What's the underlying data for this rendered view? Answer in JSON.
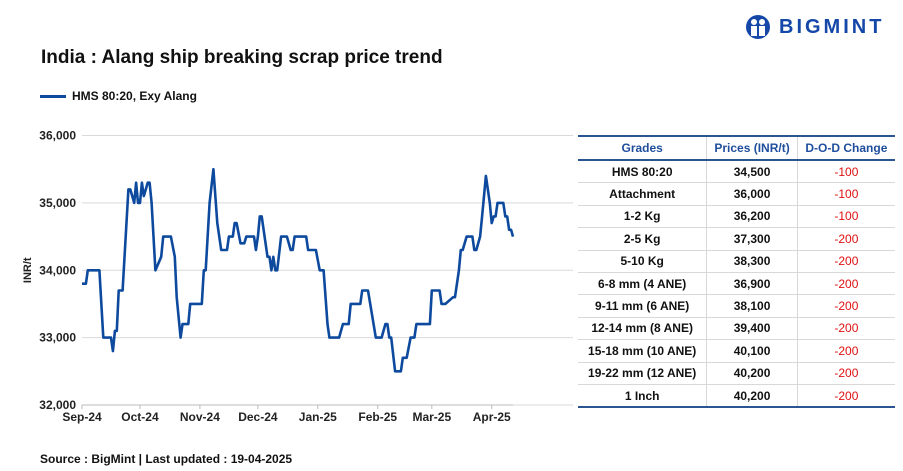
{
  "brand": {
    "name": "BIGMINT",
    "color": "#1447a8"
  },
  "title": "India : Alang ship breaking scrap price trend",
  "source": "Source : BigMint | Last updated : 19-04-2025",
  "chart_data": {
    "type": "line",
    "title": "India : Alang ship breaking scrap price trend",
    "ylabel": "INR/t",
    "ylim": [
      32000,
      36000
    ],
    "yticks": [
      "32,000",
      "33,000",
      "34,000",
      "35,000",
      "36,000"
    ],
    "xlim": [
      "2024-09-01",
      "2025-04-12"
    ],
    "xticks": [
      {
        "date": "2024-09-01",
        "label": "Sep-24"
      },
      {
        "date": "2024-10-01",
        "label": "Oct-24"
      },
      {
        "date": "2024-11-01",
        "label": "Nov-24"
      },
      {
        "date": "2024-12-01",
        "label": "Dec-24"
      },
      {
        "date": "2025-01-01",
        "label": "Jan-25"
      },
      {
        "date": "2025-02-01",
        "label": "Feb-25"
      },
      {
        "date": "2025-03-01",
        "label": "Mar-25"
      },
      {
        "date": "2025-04-01",
        "label": "Apr-25"
      }
    ],
    "grid": true,
    "legend": "top-left",
    "series": [
      {
        "name": "HMS 80:20, Exy Alang",
        "color": "#0d4a9e",
        "points": [
          [
            "2024-09-01",
            33800
          ],
          [
            "2024-09-03",
            33800
          ],
          [
            "2024-09-04",
            34000
          ],
          [
            "2024-09-10",
            34000
          ],
          [
            "2024-09-12",
            33000
          ],
          [
            "2024-09-16",
            33000
          ],
          [
            "2024-09-17",
            32800
          ],
          [
            "2024-09-18",
            33100
          ],
          [
            "2024-09-19",
            33100
          ],
          [
            "2024-09-20",
            33700
          ],
          [
            "2024-09-22",
            33700
          ],
          [
            "2024-09-25",
            35200
          ],
          [
            "2024-09-26",
            35200
          ],
          [
            "2024-09-28",
            35000
          ],
          [
            "2024-09-29",
            35300
          ],
          [
            "2024-09-30",
            35000
          ],
          [
            "2024-10-01",
            35000
          ],
          [
            "2024-10-02",
            35300
          ],
          [
            "2024-10-03",
            35100
          ],
          [
            "2024-10-04",
            35200
          ],
          [
            "2024-10-05",
            35300
          ],
          [
            "2024-10-06",
            35300
          ],
          [
            "2024-10-07",
            35000
          ],
          [
            "2024-10-09",
            34000
          ],
          [
            "2024-10-12",
            34200
          ],
          [
            "2024-10-13",
            34500
          ],
          [
            "2024-10-17",
            34500
          ],
          [
            "2024-10-19",
            34200
          ],
          [
            "2024-10-20",
            33600
          ],
          [
            "2024-10-22",
            33000
          ],
          [
            "2024-10-23",
            33200
          ],
          [
            "2024-10-26",
            33200
          ],
          [
            "2024-10-27",
            33500
          ],
          [
            "2024-11-02",
            33500
          ],
          [
            "2024-11-03",
            34000
          ],
          [
            "2024-11-04",
            34000
          ],
          [
            "2024-11-06",
            35000
          ],
          [
            "2024-11-08",
            35500
          ],
          [
            "2024-11-10",
            34700
          ],
          [
            "2024-11-12",
            34300
          ],
          [
            "2024-11-15",
            34300
          ],
          [
            "2024-11-16",
            34500
          ],
          [
            "2024-11-18",
            34500
          ],
          [
            "2024-11-19",
            34700
          ],
          [
            "2024-11-20",
            34700
          ],
          [
            "2024-11-22",
            34400
          ],
          [
            "2024-11-24",
            34400
          ],
          [
            "2024-11-25",
            34500
          ],
          [
            "2024-11-29",
            34500
          ],
          [
            "2024-11-30",
            34300
          ],
          [
            "2024-12-01",
            34500
          ],
          [
            "2024-12-02",
            34800
          ],
          [
            "2024-12-03",
            34800
          ],
          [
            "2024-12-06",
            34200
          ],
          [
            "2024-12-07",
            34200
          ],
          [
            "2024-12-08",
            34000
          ],
          [
            "2024-12-09",
            34200
          ],
          [
            "2024-12-10",
            34000
          ],
          [
            "2024-12-11",
            34000
          ],
          [
            "2024-12-13",
            34500
          ],
          [
            "2024-12-16",
            34500
          ],
          [
            "2024-12-18",
            34300
          ],
          [
            "2024-12-19",
            34300
          ],
          [
            "2024-12-20",
            34500
          ],
          [
            "2024-12-26",
            34500
          ],
          [
            "2024-12-27",
            34300
          ],
          [
            "2024-12-31",
            34300
          ],
          [
            "2025-01-02",
            34000
          ],
          [
            "2025-01-04",
            34000
          ],
          [
            "2025-01-06",
            33200
          ],
          [
            "2025-01-07",
            33000
          ],
          [
            "2025-01-12",
            33000
          ],
          [
            "2025-01-14",
            33200
          ],
          [
            "2025-01-17",
            33200
          ],
          [
            "2025-01-18",
            33500
          ],
          [
            "2025-01-23",
            33500
          ],
          [
            "2025-01-24",
            33700
          ],
          [
            "2025-01-27",
            33700
          ],
          [
            "2025-01-31",
            33000
          ],
          [
            "2025-02-03",
            33000
          ],
          [
            "2025-02-05",
            33200
          ],
          [
            "2025-02-06",
            33200
          ],
          [
            "2025-02-07",
            33000
          ],
          [
            "2025-02-08",
            33000
          ],
          [
            "2025-02-10",
            32500
          ],
          [
            "2025-02-13",
            32500
          ],
          [
            "2025-02-14",
            32700
          ],
          [
            "2025-02-16",
            32700
          ],
          [
            "2025-02-18",
            33000
          ],
          [
            "2025-02-20",
            33000
          ],
          [
            "2025-02-21",
            33200
          ],
          [
            "2025-02-28",
            33200
          ],
          [
            "2025-03-01",
            33700
          ],
          [
            "2025-03-05",
            33700
          ],
          [
            "2025-03-06",
            33500
          ],
          [
            "2025-03-08",
            33500
          ],
          [
            "2025-03-12",
            33600
          ],
          [
            "2025-03-13",
            33600
          ],
          [
            "2025-03-15",
            34000
          ],
          [
            "2025-03-16",
            34300
          ],
          [
            "2025-03-17",
            34300
          ],
          [
            "2025-03-19",
            34500
          ],
          [
            "2025-03-22",
            34500
          ],
          [
            "2025-03-23",
            34300
          ],
          [
            "2025-03-24",
            34300
          ],
          [
            "2025-03-26",
            34500
          ],
          [
            "2025-03-27",
            34800
          ],
          [
            "2025-03-29",
            35400
          ],
          [
            "2025-03-31",
            35000
          ],
          [
            "2025-04-01",
            34700
          ],
          [
            "2025-04-02",
            34800
          ],
          [
            "2025-04-03",
            34800
          ],
          [
            "2025-04-04",
            35000
          ],
          [
            "2025-04-07",
            35000
          ],
          [
            "2025-04-08",
            34800
          ],
          [
            "2025-04-09",
            34800
          ],
          [
            "2025-04-10",
            34600
          ],
          [
            "2025-04-11",
            34600
          ],
          [
            "2025-04-12",
            34500
          ]
        ]
      }
    ]
  },
  "table": {
    "headers": [
      "Grades",
      "Prices (INR/t)",
      "D-O-D Change"
    ],
    "rows": [
      [
        "HMS 80:20",
        "34,500",
        "-100"
      ],
      [
        "Attachment",
        "36,000",
        "-100"
      ],
      [
        "1-2 Kg",
        "36,200",
        "-100"
      ],
      [
        "2-5 Kg",
        "37,300",
        "-200"
      ],
      [
        "5-10 Kg",
        "38,300",
        "-200"
      ],
      [
        "6-8 mm (4 ANE)",
        "36,900",
        "-200"
      ],
      [
        "9-11 mm (6 ANE)",
        "38,100",
        "-200"
      ],
      [
        "12-14 mm (8 ANE)",
        "39,400",
        "-200"
      ],
      [
        "15-18 mm (10 ANE)",
        "40,100",
        "-200"
      ],
      [
        "19-22 mm (12 ANE)",
        "40,200",
        "-200"
      ],
      [
        "1 Inch",
        "40,200",
        "-200"
      ]
    ]
  }
}
